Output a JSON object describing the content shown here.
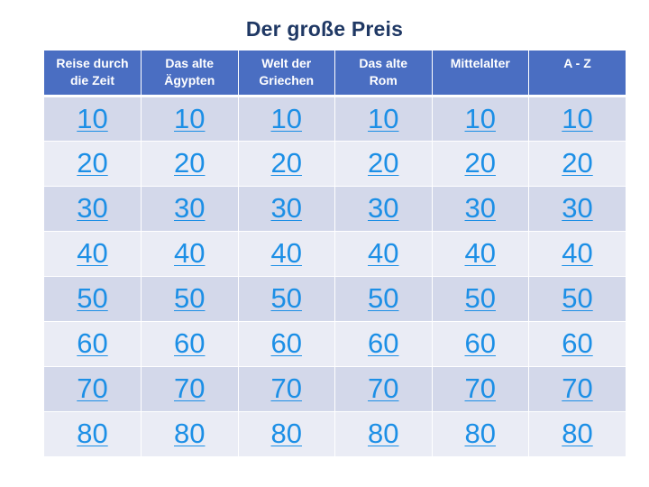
{
  "title": "Der große Preis",
  "categories": [
    {
      "line1": "Reise durch",
      "line2": "die Zeit"
    },
    {
      "line1": "Das alte",
      "line2": "Ägypten"
    },
    {
      "line1": "Welt der",
      "line2": "Griechen"
    },
    {
      "line1": "Das alte",
      "line2": "Rom"
    },
    {
      "line1": "Mittelalter",
      "line2": ""
    },
    {
      "line1": "A - Z",
      "line2": ""
    }
  ],
  "rows": [
    {
      "points": [
        "10",
        "10",
        "10",
        "10",
        "10",
        "10"
      ]
    },
    {
      "points": [
        "20",
        "20",
        "20",
        "20",
        "20",
        "20"
      ]
    },
    {
      "points": [
        "30",
        "30",
        "30",
        "30",
        "30",
        "30"
      ]
    },
    {
      "points": [
        "40",
        "40",
        "40",
        "40",
        "40",
        "40"
      ]
    },
    {
      "points": [
        "50",
        "50",
        "50",
        "50",
        "50",
        "50"
      ]
    },
    {
      "points": [
        "60",
        "60",
        "60",
        "60",
        "60",
        "60"
      ]
    },
    {
      "points": [
        "70",
        "70",
        "70",
        "70",
        "70",
        "70"
      ]
    },
    {
      "points": [
        "80",
        "80",
        "80",
        "80",
        "80",
        "80"
      ]
    }
  ],
  "colors": {
    "title": "#1f3864",
    "header_bg": "#4a6ec2",
    "row_odd": "#d3d8ea",
    "row_even": "#eaecf5",
    "link": "#1c8fe6"
  }
}
